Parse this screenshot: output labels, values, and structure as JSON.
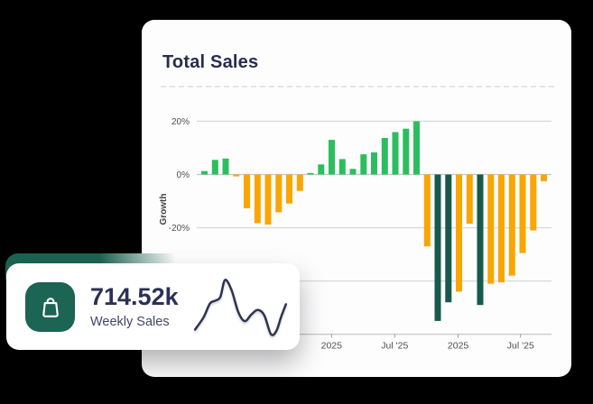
{
  "colors": {
    "background": "#000000",
    "card_green": "#1c6453",
    "bar_green": "#2cbe5e",
    "bar_orange": "#f9a602",
    "bar_dark_green": "#17594a",
    "title_navy": "#262d4d",
    "axis_text": "#4f4f4f",
    "grid_line": "#d9d9d9",
    "zero_line": "#c6c6c6",
    "sparkline_navy": "#2e3450"
  },
  "panel": {
    "title": "Total Sales"
  },
  "chart_data": {
    "type": "bar",
    "title": "Total Sales",
    "xlabel": "",
    "ylabel": "Growth",
    "unit": "%",
    "ylim": [
      -60,
      27
    ],
    "grid": true,
    "legend": "none",
    "y_ticks": [
      {
        "value": 20,
        "label": "20%"
      },
      {
        "value": 0,
        "label": "0%"
      },
      {
        "value": -20,
        "label": "-20%"
      },
      {
        "value": -40,
        "label": ""
      },
      {
        "value": -60,
        "label": ""
      }
    ],
    "x_ticks": [
      {
        "pos": 0.38,
        "label": "2025"
      },
      {
        "pos": 0.558,
        "label": "Jul '25"
      },
      {
        "pos": 0.737,
        "label": "2025"
      },
      {
        "pos": 0.913,
        "label": "Jul '25"
      }
    ],
    "bars": [
      {
        "value": 1.3,
        "color": "green"
      },
      {
        "value": 5.5,
        "color": "green"
      },
      {
        "value": 6.0,
        "color": "green"
      },
      {
        "value": -0.7,
        "color": "orange"
      },
      {
        "value": -12.7,
        "color": "orange"
      },
      {
        "value": -18.3,
        "color": "orange"
      },
      {
        "value": -18.8,
        "color": "orange"
      },
      {
        "value": -14.2,
        "color": "orange"
      },
      {
        "value": -10.9,
        "color": "orange"
      },
      {
        "value": -6.2,
        "color": "orange"
      },
      {
        "value": 0.4,
        "color": "green"
      },
      {
        "value": 3.8,
        "color": "green"
      },
      {
        "value": 13.0,
        "color": "green"
      },
      {
        "value": 5.8,
        "color": "green"
      },
      {
        "value": 2.1,
        "color": "green"
      },
      {
        "value": 7.6,
        "color": "green"
      },
      {
        "value": 8.3,
        "color": "green"
      },
      {
        "value": 13.7,
        "color": "green"
      },
      {
        "value": 15.9,
        "color": "green"
      },
      {
        "value": 17.2,
        "color": "green"
      },
      {
        "value": 20.0,
        "color": "green"
      },
      {
        "value": -27.0,
        "color": "orange"
      },
      {
        "value": -55.0,
        "color": "dark"
      },
      {
        "value": -48.0,
        "color": "dark"
      },
      {
        "value": -44.0,
        "color": "orange"
      },
      {
        "value": -18.5,
        "color": "orange"
      },
      {
        "value": -49.0,
        "color": "dark"
      },
      {
        "value": -41.0,
        "color": "orange"
      },
      {
        "value": -40.5,
        "color": "orange"
      },
      {
        "value": -38.0,
        "color": "orange"
      },
      {
        "value": -29.5,
        "color": "orange"
      },
      {
        "value": -21.0,
        "color": "orange"
      },
      {
        "value": -2.5,
        "color": "orange"
      }
    ]
  },
  "widget": {
    "value": "714.52k",
    "label": "Weekly Sales",
    "icon": "shopping-bag-icon",
    "sparkline_points": [
      [
        4,
        62
      ],
      [
        13,
        49
      ],
      [
        20,
        34
      ],
      [
        26,
        31
      ],
      [
        31,
        27
      ],
      [
        36,
        9
      ],
      [
        43,
        20
      ],
      [
        50,
        43
      ],
      [
        57,
        53
      ],
      [
        64,
        46
      ],
      [
        71,
        41
      ],
      [
        78,
        47
      ],
      [
        85,
        67
      ],
      [
        91,
        63
      ],
      [
        96,
        48
      ],
      [
        101,
        35
      ]
    ]
  }
}
